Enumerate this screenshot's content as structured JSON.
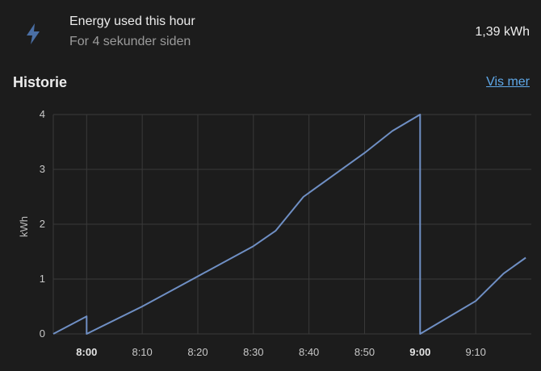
{
  "entity": {
    "name": "Energy used this hour",
    "last_changed": "For 4 sekunder siden",
    "state": "1,39 kWh",
    "icon": "flash-icon"
  },
  "history": {
    "title": "Historie",
    "show_more_label": "Vis mer"
  },
  "colors": {
    "background": "#1c1c1c",
    "line": "#6f8fc4",
    "grid": "#3a3a3a",
    "link": "#5fa8e8",
    "icon": "#4a6fa5"
  },
  "chart_data": {
    "type": "line",
    "ylabel": "kWh",
    "ylim": [
      0,
      4
    ],
    "yticks": [
      "0",
      "1",
      "2",
      "3",
      "4"
    ],
    "xlim": [
      "7:54",
      "9:20"
    ],
    "xticks": [
      {
        "label": "8:00",
        "bold": true
      },
      {
        "label": "8:10",
        "bold": false
      },
      {
        "label": "8:20",
        "bold": false
      },
      {
        "label": "8:30",
        "bold": false
      },
      {
        "label": "8:40",
        "bold": false
      },
      {
        "label": "8:50",
        "bold": false
      },
      {
        "label": "9:00",
        "bold": true
      },
      {
        "label": "9:10",
        "bold": false
      }
    ],
    "series": [
      {
        "points": [
          {
            "x": "7:54",
            "y": 0.0
          },
          {
            "x": "8:00",
            "y": 0.32
          },
          {
            "x": "8:00",
            "y": 0.0
          },
          {
            "x": "8:10",
            "y": 0.5
          },
          {
            "x": "8:20",
            "y": 1.05
          },
          {
            "x": "8:30",
            "y": 1.6
          },
          {
            "x": "8:34",
            "y": 1.88
          },
          {
            "x": "8:39",
            "y": 2.5
          },
          {
            "x": "8:50",
            "y": 3.3
          },
          {
            "x": "8:55",
            "y": 3.7
          },
          {
            "x": "9:00",
            "y": 4.0
          },
          {
            "x": "9:00",
            "y": 0.0
          },
          {
            "x": "9:10",
            "y": 0.6
          },
          {
            "x": "9:15",
            "y": 1.1
          },
          {
            "x": "9:19",
            "y": 1.39
          }
        ]
      }
    ]
  }
}
